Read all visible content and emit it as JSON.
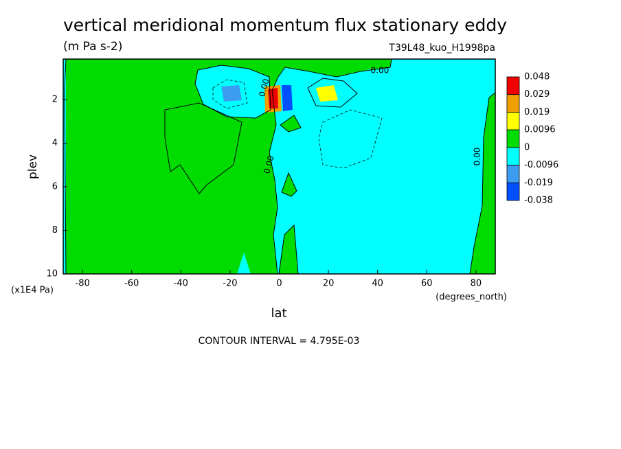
{
  "chart_data": {
    "type": "contour",
    "title": "vertical meridional momentum flux stationary eddy",
    "subtitle": "(m Pa s-2)",
    "run_label": "T39L48_kuo_H1998pa",
    "x_label": "lat",
    "x_unit": "(degrees_north)",
    "y_label": "plev",
    "y_unit": "(x1E4 Pa)",
    "footer": "CONTOUR INTERVAL = 4.795E-03",
    "xlim": [
      -87.86,
      87.86
    ],
    "xticks": [
      -80,
      -60,
      -40,
      -20,
      0,
      20,
      40,
      60,
      80
    ],
    "ylim": [
      10,
      0.14
    ],
    "yticks": [
      2,
      4,
      6,
      8,
      10
    ],
    "levels": [
      0.048,
      0.029,
      0.019,
      0.0096,
      0,
      -0.0096,
      -0.019,
      -0.038
    ],
    "colors": [
      "#f00000",
      "#f0a000",
      "#ffff00",
      "#00dc00",
      "#00ffff",
      "#3c9cf0",
      "#0050ff"
    ],
    "contour_labels": [
      {
        "value": 0,
        "label": "0.00"
      },
      {
        "value": 0,
        "label": "0.00"
      },
      {
        "value": 0,
        "label": "0.00"
      },
      {
        "value": 0,
        "label": "0.00"
      }
    ]
  }
}
